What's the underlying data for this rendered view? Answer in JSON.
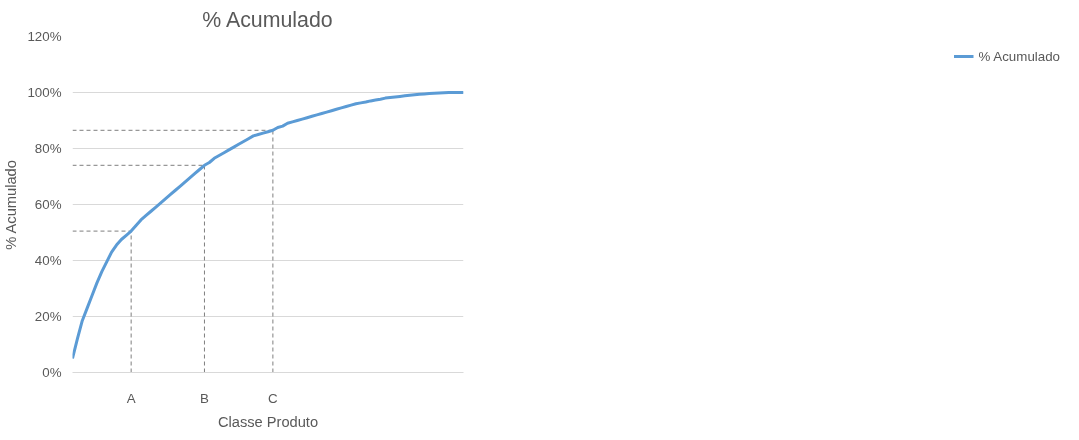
{
  "chart_data": {
    "type": "line",
    "title": "% Acumulado",
    "xlabel": "Classe Produto",
    "ylabel": "% Acumulado",
    "categories": [
      null,
      null,
      null,
      null,
      null,
      null,
      null,
      null,
      null,
      null,
      null,
      null,
      "A",
      null,
      null,
      null,
      null,
      null,
      null,
      null,
      null,
      null,
      null,
      null,
      null,
      null,
      null,
      "B",
      null,
      null,
      null,
      null,
      null,
      null,
      null,
      null,
      null,
      null,
      null,
      null,
      null,
      "C",
      null,
      null,
      null,
      null,
      null,
      null,
      null,
      null,
      null,
      null,
      null,
      null,
      null,
      null,
      null,
      null,
      null,
      null,
      null,
      null,
      null,
      null,
      null,
      null,
      null,
      null,
      null,
      null,
      null,
      null,
      null,
      null,
      null,
      null,
      null,
      null,
      null,
      null,
      null
    ],
    "series": [
      {
        "name": "% Acumulado",
        "color": "#5b9bd5",
        "values": [
          5,
          12,
          18.5,
          23,
          27.5,
          32,
          36,
          39.5,
          43,
          45.5,
          47.5,
          49,
          50.5,
          52.5,
          54.5,
          56,
          57.5,
          59,
          60.5,
          62,
          63.5,
          65,
          66.5,
          68,
          69.5,
          71,
          72.5,
          74,
          75,
          76.5,
          77.5,
          78.5,
          79.5,
          80.5,
          81.5,
          82.5,
          83.5,
          84.5,
          85,
          85.5,
          86,
          86.5,
          87.5,
          88,
          89,
          89.5,
          90,
          90.5,
          91,
          91.5,
          92,
          92.5,
          93,
          93.5,
          94,
          94.5,
          95,
          95.5,
          96,
          96.3,
          96.6,
          97,
          97.3,
          97.6,
          98,
          98.2,
          98.4,
          98.6,
          98.8,
          99,
          99.2,
          99.4,
          99.5,
          99.6,
          99.7,
          99.8,
          99.9,
          100,
          100,
          100,
          100
        ]
      }
    ],
    "ylim": [
      0,
      120
    ],
    "yticks": [
      {
        "value": 0,
        "label": "0%"
      },
      {
        "value": 20,
        "label": "20%"
      },
      {
        "value": 40,
        "label": "40%"
      },
      {
        "value": 60,
        "label": "60%"
      },
      {
        "value": 80,
        "label": "80%"
      },
      {
        "value": 100,
        "label": "100%"
      },
      {
        "value": 120,
        "label": "120%"
      }
    ],
    "ref_lines": [
      {
        "axis": "x",
        "value": "A",
        "color": "#7f7f7f",
        "line_style": "dashed"
      },
      {
        "axis": "x",
        "value": "B",
        "color": "#7f7f7f",
        "line_style": "dashed"
      },
      {
        "axis": "x",
        "value": "C",
        "color": "#7f7f7f",
        "line_style": "dashed"
      },
      {
        "axis": "y",
        "value": 50.5,
        "color": "#7f7f7f",
        "line_style": "dashed"
      },
      {
        "axis": "y",
        "value": 74,
        "color": "#7f7f7f",
        "line_style": "dashed"
      },
      {
        "axis": "y",
        "value": 86.5,
        "color": "#7f7f7f",
        "line_style": "dashed"
      }
    ],
    "grid": "y",
    "legend": "right",
    "marker": "none",
    "line_style": "solid"
  }
}
